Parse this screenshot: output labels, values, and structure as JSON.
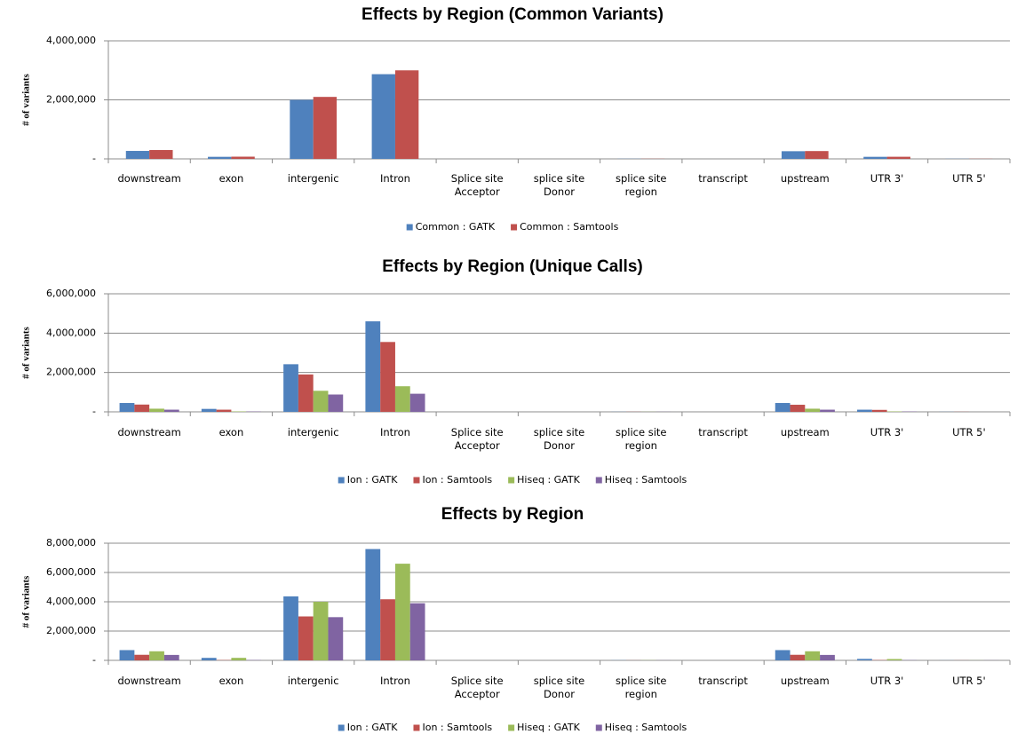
{
  "chart_data": [
    {
      "type": "bar",
      "title": "Effects by Region (Common Variants)",
      "y_label": "# of variants",
      "categories": [
        "downstream",
        "exon",
        "intergenic",
        "Intron",
        "Splice site Acceptor",
        "splice site Donor",
        "splice site region",
        "transcript",
        "upstream",
        "UTR 3'",
        "UTR 5'"
      ],
      "series": [
        {
          "name": "Common : GATK",
          "color": "#4f81bd",
          "values": [
            270000,
            70000,
            2000000,
            2870000,
            0,
            0,
            5000,
            0,
            260000,
            70000,
            5000
          ]
        },
        {
          "name": "Common : Samtools",
          "color": "#c0504d",
          "values": [
            300000,
            75000,
            2100000,
            3000000,
            0,
            0,
            5000,
            0,
            265000,
            72000,
            5000
          ]
        }
      ],
      "ylim": [
        0,
        4000000
      ],
      "yticks": [
        {
          "value": 0,
          "label": "-"
        },
        {
          "value": 2000000,
          "label": "2,000,000"
        },
        {
          "value": 4000000,
          "label": "4,000,000"
        }
      ],
      "grid": true,
      "legend": "bottom"
    },
    {
      "type": "bar",
      "title": "Effects by Region (Unique Calls)",
      "y_label": "# of variants",
      "categories": [
        "downstream",
        "exon",
        "intergenic",
        "Intron",
        "Splice site Acceptor",
        "splice site Donor",
        "splice site region",
        "transcript",
        "upstream",
        "UTR 3'",
        "UTR 5'"
      ],
      "series": [
        {
          "name": "Ion : GATK",
          "color": "#4f81bd",
          "values": [
            450000,
            150000,
            2420000,
            4600000,
            0,
            0,
            5000,
            0,
            450000,
            110000,
            5000
          ]
        },
        {
          "name": "Ion : Samtools",
          "color": "#c0504d",
          "values": [
            370000,
            110000,
            1900000,
            3550000,
            0,
            0,
            5000,
            0,
            360000,
            100000,
            5000
          ]
        },
        {
          "name": "Hiseq : GATK",
          "color": "#9bbb59",
          "values": [
            160000,
            20000,
            1070000,
            1300000,
            0,
            0,
            5000,
            0,
            160000,
            20000,
            0
          ]
        },
        {
          "name": "Hiseq : Samtools",
          "color": "#8064a2",
          "values": [
            110000,
            15000,
            880000,
            920000,
            0,
            0,
            5000,
            0,
            110000,
            15000,
            0
          ]
        }
      ],
      "ylim": [
        0,
        6000000
      ],
      "yticks": [
        {
          "value": 0,
          "label": "-"
        },
        {
          "value": 2000000,
          "label": "2,000,000"
        },
        {
          "value": 4000000,
          "label": "4,000,000"
        },
        {
          "value": 6000000,
          "label": "6,000,000"
        }
      ],
      "grid": true,
      "legend": "bottom"
    },
    {
      "type": "bar",
      "title": "Effects by Region",
      "y_label": "# of variants",
      "categories": [
        "downstream",
        "exon",
        "intergenic",
        "Intron",
        "Splice site Acceptor",
        "splice site Donor",
        "splice site region",
        "transcript",
        "upstream",
        "UTR 3'",
        "UTR 5'"
      ],
      "series": [
        {
          "name": "Ion : GATK",
          "color": "#4f81bd",
          "values": [
            700000,
            170000,
            4370000,
            7600000,
            0,
            0,
            10000,
            0,
            700000,
            100000,
            5000
          ]
        },
        {
          "name": "Ion : Samtools",
          "color": "#c0504d",
          "values": [
            380000,
            20000,
            3000000,
            4170000,
            0,
            0,
            5000,
            0,
            380000,
            20000,
            5000
          ]
        },
        {
          "name": "Hiseq : GATK",
          "color": "#9bbb59",
          "values": [
            620000,
            170000,
            4000000,
            6600000,
            0,
            0,
            10000,
            0,
            620000,
            90000,
            5000
          ]
        },
        {
          "name": "Hiseq : Samtools",
          "color": "#8064a2",
          "values": [
            370000,
            20000,
            2950000,
            3900000,
            0,
            0,
            5000,
            0,
            370000,
            15000,
            5000
          ]
        }
      ],
      "ylim": [
        0,
        8000000
      ],
      "yticks": [
        {
          "value": 0,
          "label": "-"
        },
        {
          "value": 2000000,
          "label": "2,000,000"
        },
        {
          "value": 4000000,
          "label": "4,000,000"
        },
        {
          "value": 6000000,
          "label": "6,000,000"
        },
        {
          "value": 8000000,
          "label": "8,000,000"
        }
      ],
      "grid": true,
      "legend": "bottom"
    }
  ]
}
